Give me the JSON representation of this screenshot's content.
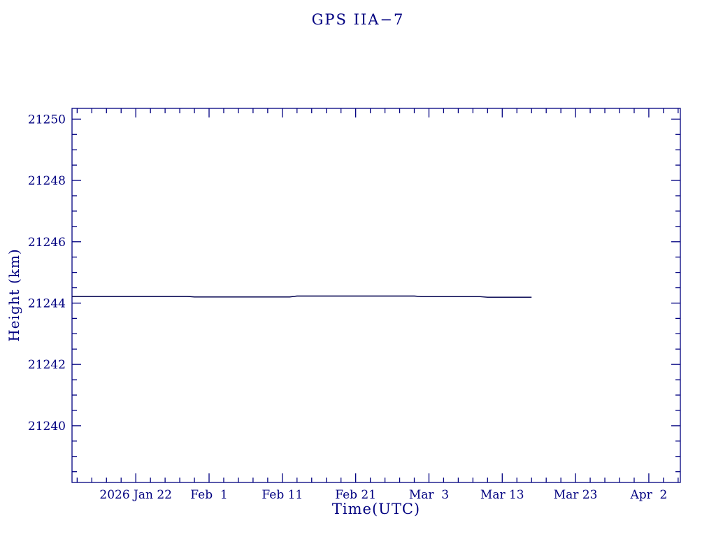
{
  "title": "GPS IIA−7",
  "colors": {
    "background": "#ffffff",
    "axis": "#000080",
    "text": "#000080",
    "line": "#00004d"
  },
  "chart_data": {
    "type": "line",
    "title": "GPS IIA−7",
    "xlabel": "Time(UTC)",
    "ylabel": "Height (km)",
    "x_unit": "days relative to 2026 Jan 22",
    "x_range": [
      -8.7,
      74.3
    ],
    "y_range": [
      21238.15,
      21250.35
    ],
    "grid": "off",
    "legend": "none",
    "x_major_ticks": [
      {
        "day": 0,
        "label": "2026 Jan 22"
      },
      {
        "day": 10,
        "label": "Feb  1"
      },
      {
        "day": 20,
        "label": "Feb 11"
      },
      {
        "day": 30,
        "label": "Feb 21"
      },
      {
        "day": 40,
        "label": "Mar  3"
      },
      {
        "day": 50,
        "label": "Mar 13"
      },
      {
        "day": 60,
        "label": "Mar 23"
      },
      {
        "day": 70,
        "label": "Apr  2"
      }
    ],
    "x_minor_step": 2,
    "y_major_ticks": [
      {
        "value": 21240,
        "label": "21240"
      },
      {
        "value": 21242,
        "label": "21242"
      },
      {
        "value": 21244,
        "label": "21244"
      },
      {
        "value": 21246,
        "label": "21246"
      },
      {
        "value": 21248,
        "label": "21248"
      },
      {
        "value": 21250,
        "label": "21250"
      }
    ],
    "y_minor_step": 0.5,
    "series": [
      {
        "name": "height",
        "points": [
          {
            "day": -8.7,
            "km": 21244.22
          },
          {
            "day": 7,
            "km": 21244.22
          },
          {
            "day": 8,
            "km": 21244.2
          },
          {
            "day": 21,
            "km": 21244.2
          },
          {
            "day": 22,
            "km": 21244.23
          },
          {
            "day": 38,
            "km": 21244.23
          },
          {
            "day": 39,
            "km": 21244.21
          },
          {
            "day": 47,
            "km": 21244.21
          },
          {
            "day": 48,
            "km": 21244.19
          },
          {
            "day": 54,
            "km": 21244.19
          }
        ]
      }
    ]
  }
}
